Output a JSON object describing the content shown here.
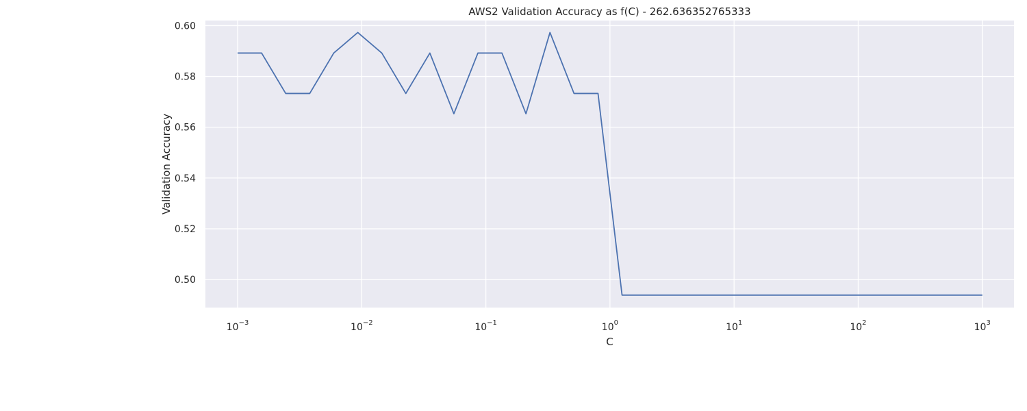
{
  "chart_data": {
    "type": "line",
    "title": "AWS2 Validation Accuracy as f(C) - 262.636352765333",
    "xlabel": "C",
    "ylabel": "Validation Accuracy",
    "xscale": "log",
    "xlim": [
      0.00055,
      1800
    ],
    "ylim": [
      0.489,
      0.602
    ],
    "grid": true,
    "yticks": [
      0.5,
      0.52,
      0.54,
      0.56,
      0.58,
      0.6
    ],
    "ytick_labels": [
      "0.50",
      "0.52",
      "0.54",
      "0.56",
      "0.58",
      "0.60"
    ],
    "xticks": [
      0.001,
      0.01,
      0.1,
      1,
      10,
      100,
      1000
    ],
    "xtick_bases": [
      "10",
      "10",
      "10",
      "10",
      "10",
      "10",
      "10"
    ],
    "xtick_exponents": [
      "−3",
      "−2",
      "−1",
      "0",
      "1",
      "2",
      "3"
    ],
    "background": "#eaeaf2",
    "line_color": "#4c72b0",
    "series": [
      {
        "x": [
          0.001,
          0.00156,
          0.00244,
          0.00381,
          0.00595,
          0.00929,
          0.01451,
          0.02266,
          0.03539,
          0.05526,
          0.08629,
          0.13476,
          0.21044,
          0.32863,
          0.51317,
          0.80138,
          1.2514,
          1.9542,
          3.0517,
          4.7655,
          7.4418,
          11.621,
          18.148,
          28.34,
          44.256,
          69.11,
          107.92,
          168.53,
          263.17,
          410.97,
          641.77,
          1000
        ],
        "y": [
          0.5892,
          0.5892,
          0.5733,
          0.5733,
          0.5892,
          0.5973,
          0.5892,
          0.5733,
          0.5892,
          0.5653,
          0.5892,
          0.5892,
          0.5653,
          0.5973,
          0.5733,
          0.5733,
          0.4939,
          0.4939,
          0.4939,
          0.4939,
          0.4939,
          0.4939,
          0.4939,
          0.4939,
          0.4939,
          0.4939,
          0.4939,
          0.4939,
          0.4939,
          0.4939,
          0.4939,
          0.4939
        ]
      }
    ]
  }
}
